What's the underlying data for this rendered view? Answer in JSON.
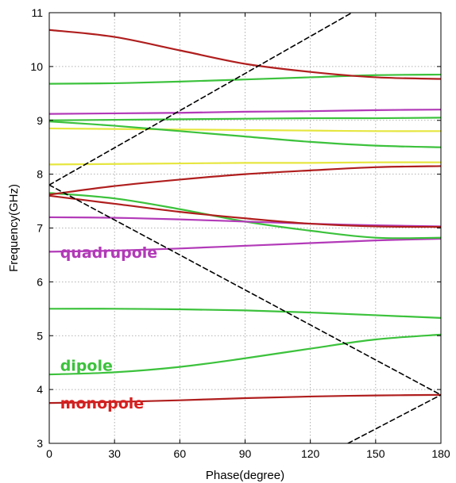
{
  "chart_data": {
    "type": "line",
    "title": "",
    "xlabel": "Phase(degree)",
    "ylabel": "Frequency(GHz)",
    "xlim": [
      0,
      180
    ],
    "ylim": [
      3,
      11
    ],
    "xticks": [
      0,
      30,
      60,
      90,
      120,
      150,
      180
    ],
    "yticks": [
      3,
      4,
      5,
      6,
      7,
      8,
      9,
      10,
      11
    ],
    "grid": true,
    "colors": {
      "monopole": "#b01e1e",
      "dipole": "#3cc23c",
      "quadrupole": "#b23ab8",
      "other": "#e6e640",
      "light_line": "#000000"
    },
    "annotations": [
      {
        "text": "quadrupole",
        "color": "#b23ab8",
        "x": 5,
        "y": 6.45
      },
      {
        "text": "dipole",
        "color": "#3cc23c",
        "x": 5,
        "y": 4.35
      },
      {
        "text": "monopole",
        "color": "#d81e1e",
        "x": 5,
        "y": 3.65
      }
    ],
    "series": [
      {
        "group": "monopole",
        "x": [
          0,
          30,
          60,
          90,
          120,
          150,
          180
        ],
        "y": [
          3.75,
          3.77,
          3.8,
          3.84,
          3.87,
          3.89,
          3.9
        ]
      },
      {
        "group": "dipole",
        "x": [
          0,
          30,
          60,
          90,
          120,
          150,
          180
        ],
        "y": [
          4.28,
          4.32,
          4.42,
          4.58,
          4.76,
          4.93,
          5.02
        ]
      },
      {
        "group": "dipole",
        "x": [
          0,
          30,
          60,
          90,
          120,
          150,
          180
        ],
        "y": [
          5.5,
          5.5,
          5.49,
          5.47,
          5.43,
          5.38,
          5.33
        ]
      },
      {
        "group": "quadrupole",
        "x": [
          0,
          30,
          60,
          90,
          120,
          150,
          180
        ],
        "y": [
          6.56,
          6.58,
          6.62,
          6.67,
          6.72,
          6.77,
          6.8
        ]
      },
      {
        "group": "dipole",
        "x": [
          0,
          30,
          60,
          90,
          120,
          150,
          180
        ],
        "y": [
          7.65,
          7.55,
          7.35,
          7.12,
          6.95,
          6.82,
          6.82
        ]
      },
      {
        "group": "quadrupole",
        "x": [
          0,
          30,
          60,
          90,
          120,
          150,
          180
        ],
        "y": [
          7.2,
          7.19,
          7.16,
          7.12,
          7.08,
          7.05,
          7.03
        ]
      },
      {
        "group": "monopole",
        "x": [
          0,
          30,
          60,
          90,
          120,
          150,
          180
        ],
        "y": [
          7.6,
          7.45,
          7.3,
          7.18,
          7.08,
          7.03,
          7.02
        ]
      },
      {
        "group": "monopole",
        "x": [
          0,
          30,
          60,
          90,
          120,
          150,
          180
        ],
        "y": [
          7.62,
          7.78,
          7.9,
          8.0,
          8.07,
          8.13,
          8.15
        ]
      },
      {
        "group": "other",
        "x": [
          0,
          30,
          60,
          90,
          120,
          150,
          180
        ],
        "y": [
          8.18,
          8.19,
          8.2,
          8.21,
          8.21,
          8.22,
          8.22
        ]
      },
      {
        "group": "other",
        "x": [
          0,
          30,
          60,
          90,
          120,
          150,
          180
        ],
        "y": [
          8.85,
          8.84,
          8.83,
          8.82,
          8.81,
          8.8,
          8.8
        ]
      },
      {
        "group": "dipole",
        "x": [
          0,
          30,
          60,
          90,
          120,
          150,
          180
        ],
        "y": [
          8.98,
          8.9,
          8.8,
          8.7,
          8.6,
          8.53,
          8.5
        ]
      },
      {
        "group": "dipole",
        "x": [
          0,
          30,
          60,
          90,
          120,
          150,
          180
        ],
        "y": [
          9.0,
          9.01,
          9.02,
          9.03,
          9.04,
          9.04,
          9.05
        ]
      },
      {
        "group": "quadrupole",
        "x": [
          0,
          30,
          60,
          90,
          120,
          150,
          180
        ],
        "y": [
          9.12,
          9.13,
          9.14,
          9.16,
          9.17,
          9.19,
          9.2
        ]
      },
      {
        "group": "dipole",
        "x": [
          0,
          30,
          60,
          90,
          120,
          150,
          180
        ],
        "y": [
          9.68,
          9.69,
          9.72,
          9.76,
          9.8,
          9.84,
          9.85
        ]
      },
      {
        "group": "monopole",
        "x": [
          0,
          30,
          60,
          90,
          120,
          150,
          180
        ],
        "y": [
          10.68,
          10.55,
          10.3,
          10.05,
          9.9,
          9.8,
          9.77
        ]
      },
      {
        "group": "light_line",
        "dashed": true,
        "x": [
          0,
          139.1
        ],
        "y": [
          7.8,
          11.0
        ]
      },
      {
        "group": "light_line",
        "dashed": true,
        "x": [
          0,
          180
        ],
        "y": [
          7.8,
          3.9
        ]
      },
      {
        "group": "light_line",
        "dashed": true,
        "x": [
          137.3,
          180
        ],
        "y": [
          3.0,
          3.9
        ]
      }
    ]
  }
}
